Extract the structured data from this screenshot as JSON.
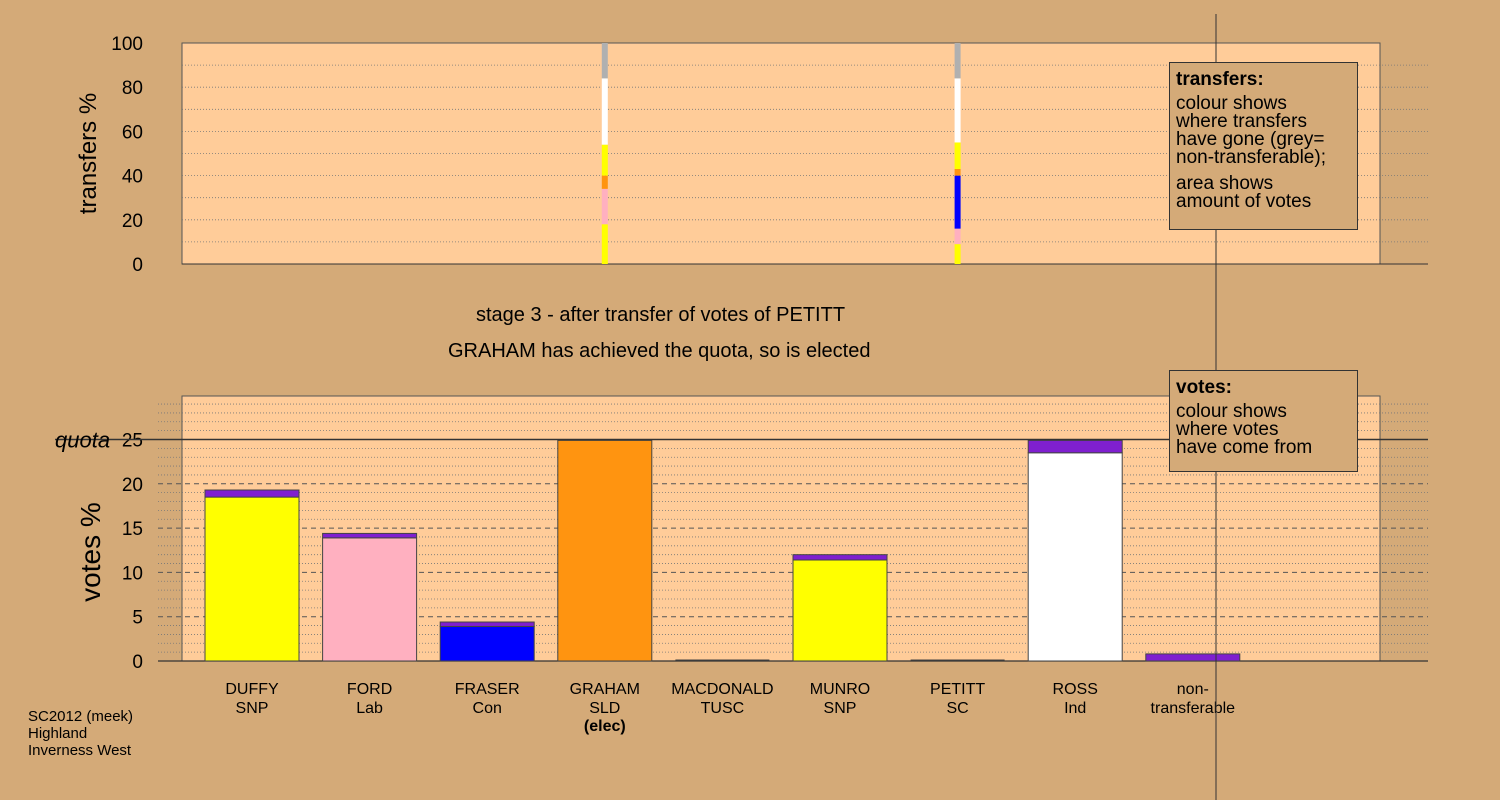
{
  "stage_title": "stage 3 - after transfer of votes of PETITT",
  "stage_subtitle": "GRAHAM has achieved the quota, so is elected",
  "legend_transfers": {
    "title": "transfers:",
    "lines_a": [
      "colour shows",
      "where transfers",
      "have gone (grey=",
      "non-transferable);"
    ],
    "lines_b": [
      "area shows",
      "amount of votes"
    ]
  },
  "legend_votes": {
    "title": "votes:",
    "lines": [
      "colour shows",
      "where votes",
      "have come from"
    ]
  },
  "footer": {
    "line1": "SC2012 (meek)",
    "line2": "Highland",
    "line3": "Inverness West"
  },
  "colors": {
    "background": "#d4aa78",
    "plot_bg": "#ffcc99",
    "snp": "#ffff00",
    "lab": "#ffb0c0",
    "con": "#0000ff",
    "sld": "#ff9410",
    "ind": "#ffffff",
    "sc": "#7f1fcf",
    "nontransferable": "#b0b0b0"
  },
  "chart_data": [
    {
      "type": "bar",
      "name": "transfers",
      "ylabel": "transfers %",
      "ylim": [
        0,
        100
      ],
      "yticks": [
        0,
        20,
        40,
        60,
        80,
        100
      ],
      "grid": true,
      "transfer_columns": [
        {
          "candidate_index": 3,
          "segments": [
            {
              "color": "#ffff00",
              "from": 0,
              "to": 18
            },
            {
              "color": "#ffb0c0",
              "from": 18,
              "to": 34
            },
            {
              "color": "#ff9410",
              "from": 34,
              "to": 40
            },
            {
              "color": "#ffff00",
              "from": 40,
              "to": 54
            },
            {
              "color": "#ffffff",
              "from": 54,
              "to": 84
            },
            {
              "color": "#b0b0b0",
              "from": 84,
              "to": 100
            }
          ]
        },
        {
          "candidate_index": 6,
          "segments": [
            {
              "color": "#ffff00",
              "from": 0,
              "to": 9
            },
            {
              "color": "#ffb0c0",
              "from": 9,
              "to": 16
            },
            {
              "color": "#0000ff",
              "from": 16,
              "to": 40
            },
            {
              "color": "#ff9410",
              "from": 40,
              "to": 43
            },
            {
              "color": "#ffff00",
              "from": 43,
              "to": 55
            },
            {
              "color": "#ffffff",
              "from": 55,
              "to": 84
            },
            {
              "color": "#b0b0b0",
              "from": 84,
              "to": 100
            }
          ]
        }
      ]
    },
    {
      "type": "bar",
      "name": "votes",
      "ylabel": "votes %",
      "ylim": [
        0,
        30
      ],
      "yticks": [
        0,
        5,
        10,
        15,
        20,
        25
      ],
      "quota_label": "quota",
      "quota": 25,
      "grid": true,
      "categories": [
        {
          "name": "DUFFY",
          "party": "SNP",
          "base": 18.5,
          "base_color": "#ffff00",
          "transfer": 0.8
        },
        {
          "name": "FORD",
          "party": "Lab",
          "base": 13.9,
          "base_color": "#ffb0c0",
          "transfer": 0.5
        },
        {
          "name": "FRASER",
          "party": "Con",
          "base": 3.9,
          "base_color": "#0000ff",
          "transfer": 0.5
        },
        {
          "name": "GRAHAM",
          "party": "SLD",
          "note": "(elec)",
          "base": 24.9,
          "base_color": "#ff9410",
          "transfer": 0
        },
        {
          "name": "MACDONALD",
          "party": "TUSC",
          "base": 0,
          "base_color": "#ff0000",
          "transfer": 0
        },
        {
          "name": "MUNRO",
          "party": "SNP",
          "base": 11.4,
          "base_color": "#ffff00",
          "transfer": 0.6
        },
        {
          "name": "PETITT",
          "party": "SC",
          "base": 0,
          "base_color": "#7f1fcf",
          "transfer": 0
        },
        {
          "name": "ROSS",
          "party": "Ind",
          "base": 23.5,
          "base_color": "#ffffff",
          "transfer": 1.4
        },
        {
          "name": "non-",
          "party": "transferable",
          "base": 0,
          "base_color": "#b0b0b0",
          "transfer": 0.8
        }
      ],
      "transfer_color": "#7f1fcf"
    }
  ]
}
